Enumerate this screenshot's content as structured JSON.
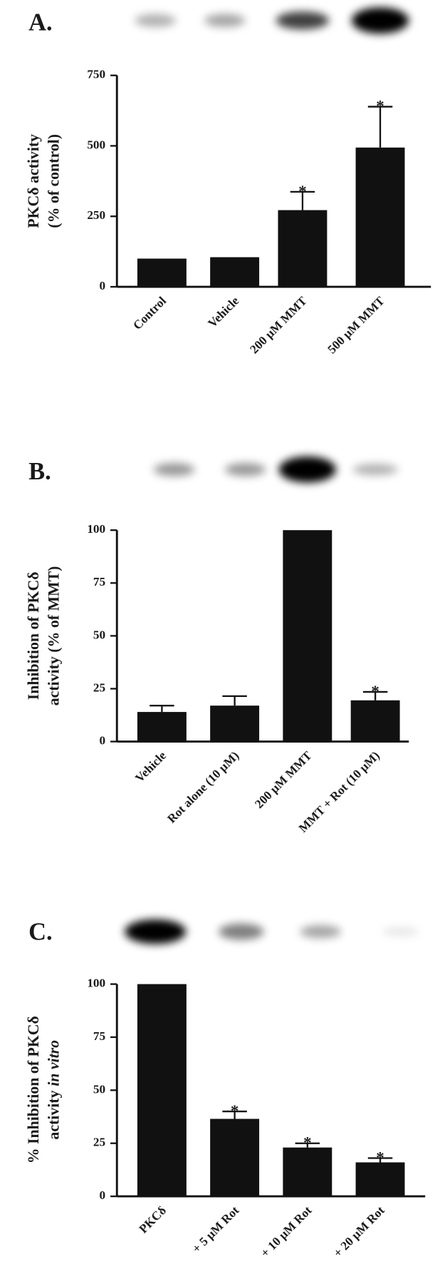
{
  "chart_data": [
    {
      "type": "bar",
      "panel": "A.",
      "ylabel": [
        [
          {
            "text": "PKCδ activity",
            "italic": false
          }
        ],
        [
          {
            "text": "(% of control)",
            "italic": false
          }
        ]
      ],
      "categories": [
        "Control",
        "Vehicle",
        "200 μM MMT",
        "500 μM MMT"
      ],
      "values": [
        100,
        105,
        272,
        494
      ],
      "errors": [
        null,
        null,
        65,
        145
      ],
      "markers": [
        null,
        null,
        "*",
        "*"
      ],
      "color": "#111111",
      "ylim": [
        0,
        750
      ],
      "yticks": [
        0,
        250,
        500,
        750
      ]
    },
    {
      "type": "bar",
      "panel": "B.",
      "ylabel": [
        [
          {
            "text": "Inhibition of PKCδ",
            "italic": false
          }
        ],
        [
          {
            "text": "activity (% of MMT)",
            "italic": false
          }
        ]
      ],
      "categories": [
        "Vehicle",
        "Rot alone (10 μM)",
        "200 μM MMT",
        "MMT + Rot (10 μM)"
      ],
      "values": [
        14,
        17,
        100,
        19.5
      ],
      "errors": [
        3,
        4.5,
        null,
        4
      ],
      "markers": [
        null,
        null,
        null,
        "*"
      ],
      "color": "#111111",
      "ylim": [
        0,
        100
      ],
      "yticks": [
        0,
        25,
        50,
        75,
        100
      ]
    },
    {
      "type": "bar",
      "panel": "C.",
      "ylabel": [
        [
          {
            "text": "% Inhibition of PKCδ",
            "italic": false
          }
        ],
        [
          {
            "text": "activity",
            "italic": false
          },
          {
            "text": "in vitro",
            "italic": true
          }
        ]
      ],
      "categories": [
        "PKCδ",
        "+ 5 μM Rot",
        "+ 10 μM Rot",
        "+ 20 μM Rot"
      ],
      "values": [
        100,
        36.5,
        23,
        16
      ],
      "errors": [
        null,
        3.5,
        2,
        2
      ],
      "markers": [
        null,
        "*",
        "*",
        "*"
      ],
      "color": "#111111",
      "ylim": [
        0,
        100
      ],
      "yticks": [
        0,
        25,
        50,
        75,
        100
      ]
    }
  ]
}
